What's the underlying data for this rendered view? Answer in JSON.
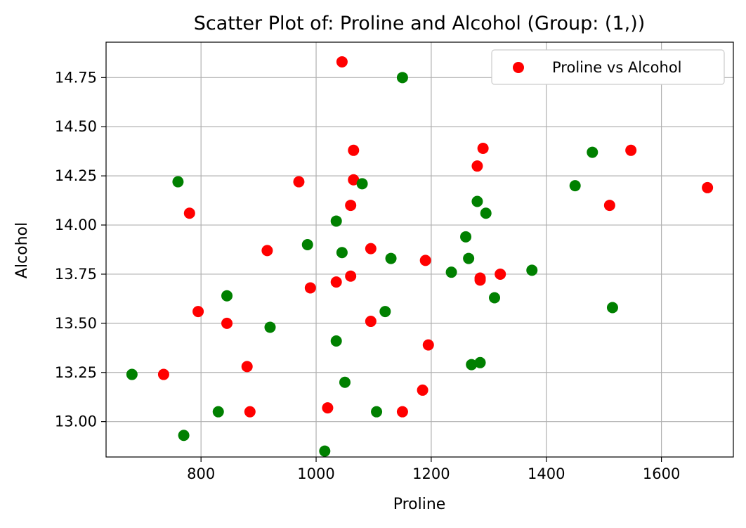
{
  "chart_data": {
    "type": "scatter",
    "title": "Scatter Plot of: Proline and Alcohol (Group: (1,))",
    "xlabel": "Proline",
    "ylabel": "Alcohol",
    "xlim": [
      635,
      1725
    ],
    "ylim": [
      12.82,
      14.93
    ],
    "xticks": [
      800,
      1000,
      1200,
      1400,
      1600
    ],
    "xtick_labels": [
      "800",
      "1000",
      "1200",
      "1400",
      "1600"
    ],
    "yticks": [
      13.0,
      13.25,
      13.5,
      13.75,
      14.0,
      14.25,
      14.5,
      14.75
    ],
    "ytick_labels": [
      "13.00",
      "13.25",
      "13.50",
      "13.75",
      "14.00",
      "14.25",
      "14.50",
      "14.75"
    ],
    "grid": true,
    "legend": {
      "label": "Proline vs Alcohol",
      "color": "#ff0000",
      "position": "upper right"
    },
    "series": [
      {
        "name": "Proline vs Alcohol",
        "color": "#ff0000",
        "points": [
          {
            "x": 1045,
            "y": 14.83
          },
          {
            "x": 1065,
            "y": 14.38
          },
          {
            "x": 1290,
            "y": 14.39
          },
          {
            "x": 1547,
            "y": 14.38
          },
          {
            "x": 1280,
            "y": 14.3
          },
          {
            "x": 970,
            "y": 14.22
          },
          {
            "x": 1065,
            "y": 14.23
          },
          {
            "x": 1680,
            "y": 14.19
          },
          {
            "x": 1060,
            "y": 14.1
          },
          {
            "x": 780,
            "y": 14.06
          },
          {
            "x": 1510,
            "y": 14.1
          },
          {
            "x": 915,
            "y": 13.87
          },
          {
            "x": 1095,
            "y": 13.88
          },
          {
            "x": 1190,
            "y": 13.82
          },
          {
            "x": 1060,
            "y": 13.74
          },
          {
            "x": 1035,
            "y": 13.71
          },
          {
            "x": 1285,
            "y": 13.72
          },
          {
            "x": 1285,
            "y": 13.73
          },
          {
            "x": 1320,
            "y": 13.75
          },
          {
            "x": 990,
            "y": 13.68
          },
          {
            "x": 795,
            "y": 13.56
          },
          {
            "x": 845,
            "y": 13.5
          },
          {
            "x": 1095,
            "y": 13.51
          },
          {
            "x": 1195,
            "y": 13.39
          },
          {
            "x": 880,
            "y": 13.28
          },
          {
            "x": 735,
            "y": 13.24
          },
          {
            "x": 1185,
            "y": 13.16
          },
          {
            "x": 1020,
            "y": 13.07
          },
          {
            "x": 885,
            "y": 13.05
          },
          {
            "x": 1150,
            "y": 13.05
          }
        ]
      },
      {
        "name": "",
        "color": "#008000",
        "points": [
          {
            "x": 1150,
            "y": 14.75
          },
          {
            "x": 1480,
            "y": 14.37
          },
          {
            "x": 760,
            "y": 14.22
          },
          {
            "x": 1080,
            "y": 14.21
          },
          {
            "x": 1450,
            "y": 14.2
          },
          {
            "x": 1280,
            "y": 14.12
          },
          {
            "x": 1295,
            "y": 14.06
          },
          {
            "x": 1035,
            "y": 14.02
          },
          {
            "x": 1260,
            "y": 13.94
          },
          {
            "x": 985,
            "y": 13.9
          },
          {
            "x": 1045,
            "y": 13.86
          },
          {
            "x": 1130,
            "y": 13.83
          },
          {
            "x": 1265,
            "y": 13.83
          },
          {
            "x": 1235,
            "y": 13.76
          },
          {
            "x": 1375,
            "y": 13.77
          },
          {
            "x": 845,
            "y": 13.64
          },
          {
            "x": 1310,
            "y": 13.63
          },
          {
            "x": 1515,
            "y": 13.58
          },
          {
            "x": 1120,
            "y": 13.56
          },
          {
            "x": 920,
            "y": 13.48
          },
          {
            "x": 1035,
            "y": 13.41
          },
          {
            "x": 1270,
            "y": 13.29
          },
          {
            "x": 1285,
            "y": 13.3
          },
          {
            "x": 680,
            "y": 13.24
          },
          {
            "x": 1050,
            "y": 13.2
          },
          {
            "x": 830,
            "y": 13.05
          },
          {
            "x": 1105,
            "y": 13.05
          },
          {
            "x": 770,
            "y": 12.93
          },
          {
            "x": 1015,
            "y": 12.85
          }
        ]
      }
    ]
  }
}
